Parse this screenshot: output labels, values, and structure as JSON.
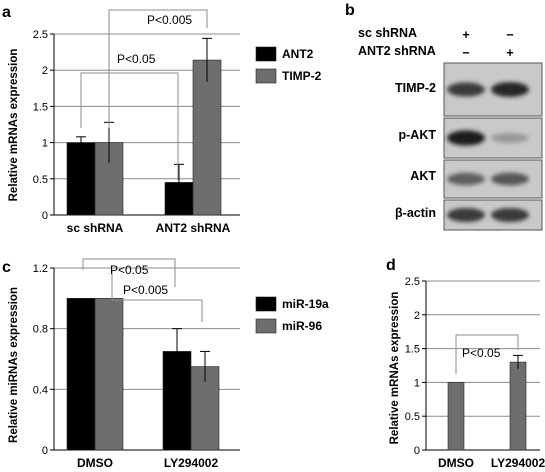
{
  "panel_labels": [
    "a",
    "b",
    "c",
    "d"
  ],
  "colors": {
    "series1": "#000000",
    "series2": "#6e6e6e",
    "single": "#6e6e6e"
  },
  "chart_data": [
    {
      "panel": "a",
      "type": "bar",
      "categories": [
        "sc shRNA",
        "ANT2 shRNA"
      ],
      "series": [
        {
          "name": "ANT2",
          "values": [
            1.0,
            0.45
          ],
          "errors": [
            0.08,
            0.25
          ]
        },
        {
          "name": "TIMP-2",
          "values": [
            1.0,
            2.14
          ],
          "errors": [
            0.28,
            0.3
          ]
        }
      ],
      "ylabel": "Relative mRNAs expression",
      "ylim": [
        0,
        2.5
      ],
      "yticks": [
        "0",
        "0.5",
        "1",
        "1.5",
        "2",
        "2.5"
      ],
      "grid": true,
      "legend": "right",
      "annotations": [
        "P<0.05",
        "P<0.005"
      ]
    },
    {
      "panel": "c",
      "type": "bar",
      "categories": [
        "DMSO",
        "LY294002"
      ],
      "series": [
        {
          "name": "miR-19a",
          "values": [
            1.0,
            0.65
          ],
          "errors": [
            0,
            0.15
          ]
        },
        {
          "name": "miR-96",
          "values": [
            1.0,
            0.55
          ],
          "errors": [
            0,
            0.1
          ]
        }
      ],
      "ylabel": "Relative miRNAs expression",
      "ylim": [
        0,
        1.2
      ],
      "yticks": [
        "0",
        "0.4",
        "0.8",
        "1.2"
      ],
      "grid": true,
      "legend": "right",
      "annotations": [
        "P<0.05",
        "P<0.005"
      ]
    },
    {
      "panel": "d",
      "type": "bar",
      "categories": [
        "DMSO",
        "LY294002"
      ],
      "values": [
        1.0,
        1.3
      ],
      "errors": [
        0,
        0.1
      ],
      "ylabel": "Relative mRNAs expression",
      "ylim": [
        0,
        2.5
      ],
      "yticks": [
        "0",
        "0.5",
        "1",
        "1.5",
        "2",
        "2.5"
      ],
      "grid": true,
      "annotations": [
        "P<0.05"
      ]
    }
  ],
  "western_blot": {
    "conditions": [
      {
        "label": "sc shRNA",
        "marks": [
          "+",
          "−"
        ]
      },
      {
        "label": "ANT2 shRNA",
        "marks": [
          "−",
          "+"
        ]
      }
    ],
    "bands": [
      {
        "label": "TIMP-2",
        "intensity": [
          0.75,
          0.85
        ]
      },
      {
        "label": "p-AKT",
        "intensity": [
          0.9,
          0.25
        ]
      },
      {
        "label": "AKT",
        "intensity": [
          0.55,
          0.6
        ]
      },
      {
        "label": "β-actin",
        "intensity": [
          0.75,
          0.75
        ]
      }
    ]
  }
}
